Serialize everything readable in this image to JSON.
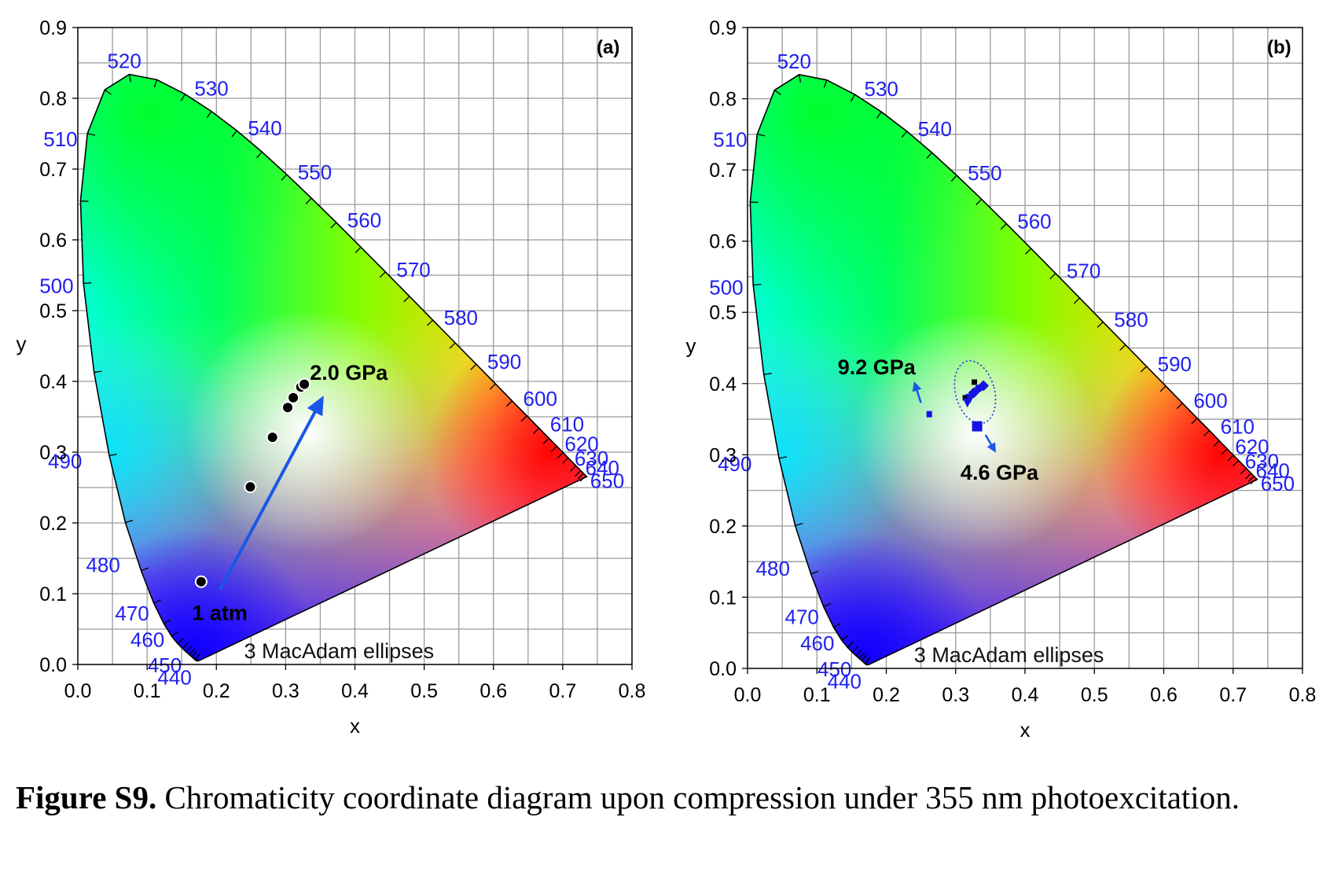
{
  "chart_data": [
    {
      "type": "scatter",
      "panel_label": "(a)",
      "xlabel": "x",
      "ylabel": "y",
      "xlim": [
        0.0,
        0.8
      ],
      "ylim": [
        0.0,
        0.9
      ],
      "x_ticks": [
        "0.0",
        "0.1",
        "0.2",
        "0.3",
        "0.4",
        "0.5",
        "0.6",
        "0.7",
        "0.8"
      ],
      "y_ticks": [
        "0.0",
        "0.1",
        "0.2",
        "0.3",
        "0.4",
        "0.5",
        "0.6",
        "0.7",
        "0.8",
        "0.9"
      ],
      "grid": true,
      "wavelength_labels": [
        {
          "nm": "440",
          "x": 0.1741,
          "y": 0.005
        },
        {
          "nm": "450",
          "x": 0.1666,
          "y": 0.0089
        },
        {
          "nm": "460",
          "x": 0.144,
          "y": 0.0297
        },
        {
          "nm": "470",
          "x": 0.1241,
          "y": 0.0578
        },
        {
          "nm": "480",
          "x": 0.0913,
          "y": 0.1327
        },
        {
          "nm": "490",
          "x": 0.0454,
          "y": 0.295
        },
        {
          "nm": "500",
          "x": 0.0082,
          "y": 0.5384
        },
        {
          "nm": "510",
          "x": 0.0139,
          "y": 0.7502
        },
        {
          "nm": "520",
          "x": 0.0743,
          "y": 0.8338
        },
        {
          "nm": "530",
          "x": 0.1547,
          "y": 0.8059
        },
        {
          "nm": "540",
          "x": 0.2296,
          "y": 0.7543
        },
        {
          "nm": "550",
          "x": 0.3016,
          "y": 0.6923
        },
        {
          "nm": "560",
          "x": 0.3731,
          "y": 0.6245
        },
        {
          "nm": "570",
          "x": 0.4441,
          "y": 0.5547
        },
        {
          "nm": "580",
          "x": 0.5125,
          "y": 0.4866
        },
        {
          "nm": "590",
          "x": 0.5752,
          "y": 0.4242
        },
        {
          "nm": "600",
          "x": 0.627,
          "y": 0.3725
        },
        {
          "nm": "610",
          "x": 0.6658,
          "y": 0.334
        },
        {
          "nm": "620",
          "x": 0.6915,
          "y": 0.3083
        },
        {
          "nm": "630",
          "x": 0.7079,
          "y": 0.292
        },
        {
          "nm": "640",
          "x": 0.719,
          "y": 0.2809
        },
        {
          "nm": "650",
          "x": 0.726,
          "y": 0.274
        }
      ],
      "series": [
        {
          "marker": "circle",
          "color": "#000000",
          "points": [
            [
              0.178,
              0.117
            ],
            [
              0.249,
              0.251
            ],
            [
              0.281,
              0.321
            ],
            [
              0.303,
              0.363
            ],
            [
              0.311,
              0.377
            ],
            [
              0.322,
              0.392
            ],
            [
              0.327,
              0.396
            ]
          ]
        }
      ],
      "annotations": [
        {
          "text": "2.0 GPa",
          "x": 0.335,
          "y": 0.402
        },
        {
          "text": "1 atm",
          "x": 0.165,
          "y": 0.063
        }
      ],
      "arrows": [
        {
          "from": [
            0.205,
            0.105
          ],
          "to": [
            0.355,
            0.38
          ],
          "color": "#1a56e8"
        }
      ],
      "macadam_label": "3   MacAdam ellipses"
    },
    {
      "type": "scatter",
      "panel_label": "(b)",
      "xlabel": "x",
      "ylabel": "y",
      "xlim": [
        0.0,
        0.8
      ],
      "ylim": [
        0.0,
        0.9
      ],
      "x_ticks": [
        "0.0",
        "0.1",
        "0.2",
        "0.3",
        "0.4",
        "0.5",
        "0.6",
        "0.7",
        "0.8"
      ],
      "y_ticks": [
        "0.0",
        "0.1",
        "0.2",
        "0.3",
        "0.4",
        "0.5",
        "0.6",
        "0.7",
        "0.8",
        "0.9"
      ],
      "grid": true,
      "series": [
        {
          "marker": "square",
          "color": "#000000",
          "points": [
            [
              0.327,
              0.402
            ],
            [
              0.314,
              0.38
            ]
          ]
        },
        {
          "marker": "square",
          "color": "#1414e6",
          "points": [
            [
              0.262,
              0.357
            ],
            [
              0.331,
              0.34
            ]
          ]
        },
        {
          "marker": "mixed",
          "color": "#1414e6",
          "points": [
            [
              0.317,
              0.374
            ],
            [
              0.321,
              0.38
            ],
            [
              0.326,
              0.387
            ],
            [
              0.333,
              0.393
            ],
            [
              0.34,
              0.397
            ]
          ]
        }
      ],
      "annotations": [
        {
          "text": "9.2 GPa",
          "x": 0.13,
          "y": 0.413
        },
        {
          "text": "4.6 GPa",
          "x": 0.307,
          "y": 0.265
        }
      ],
      "arrows": [
        {
          "from": [
            0.25,
            0.373
          ],
          "to": [
            0.24,
            0.403
          ],
          "color": "#1a56e8"
        },
        {
          "from": [
            0.343,
            0.328
          ],
          "to": [
            0.358,
            0.303
          ],
          "color": "#1a56e8"
        }
      ],
      "ellipse": {
        "cx": 0.328,
        "cy": 0.388,
        "rx": 0.028,
        "ry": 0.045,
        "rotation_deg": -15
      },
      "macadam_label": "3   MacAdam ellipses"
    }
  ],
  "caption": {
    "label": "Figure S9.",
    "text": " Chromaticity coordinate diagram upon compression under 355 nm photoexcitation."
  }
}
